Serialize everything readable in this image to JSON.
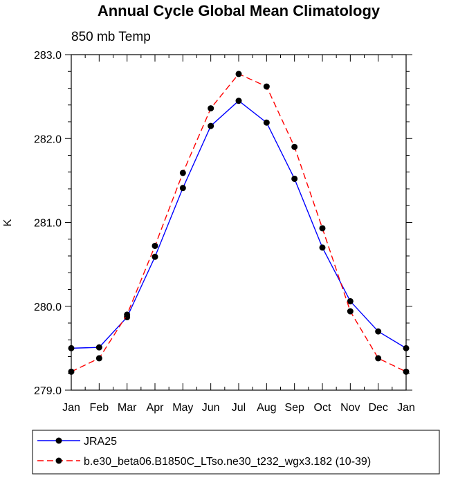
{
  "chart_data": {
    "type": "line",
    "title": "Annual Cycle Global Mean Climatology",
    "subtitle": "850 mb Temp",
    "xlabel": "",
    "ylabel": "K",
    "categories": [
      "Jan",
      "Feb",
      "Mar",
      "Apr",
      "May",
      "Jun",
      "Jul",
      "Aug",
      "Sep",
      "Oct",
      "Nov",
      "Dec",
      "Jan"
    ],
    "ylim": [
      279.0,
      283.0
    ],
    "yticks": [
      "279.0",
      "280.0",
      "281.0",
      "282.0",
      "283.0"
    ],
    "grid": false,
    "legend_position": "bottom",
    "series": [
      {
        "name": "JRA25",
        "color": "#0000ff",
        "dash": "solid",
        "values": [
          279.5,
          279.51,
          279.87,
          280.59,
          281.41,
          282.15,
          282.45,
          282.19,
          281.52,
          280.7,
          280.06,
          279.7,
          279.5
        ]
      },
      {
        "name": "b.e30_beta06.B1850C_LTso.ne30_t232_wgx3.182 (10-39)",
        "color": "#ff0000",
        "dash": "dashed",
        "values": [
          279.22,
          279.38,
          279.9,
          280.72,
          281.59,
          282.36,
          282.77,
          282.62,
          281.9,
          280.93,
          279.94,
          279.38,
          279.22
        ]
      }
    ]
  }
}
